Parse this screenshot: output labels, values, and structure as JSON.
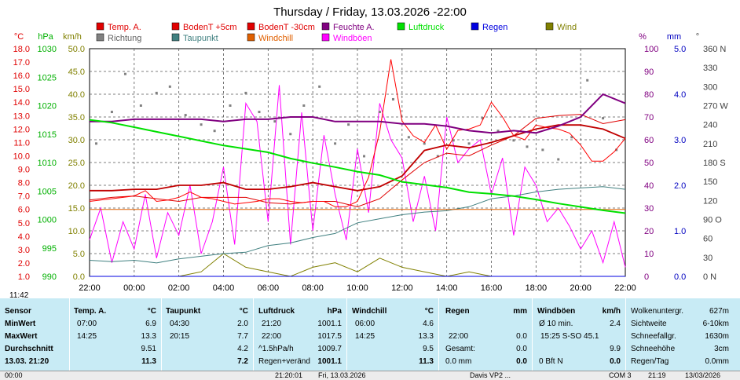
{
  "chart_data": {
    "type": "line",
    "title": "Thursday / Friday, 13.03.2026  -22:00",
    "x_ticks": [
      "22:00",
      "00:00",
      "02:00",
      "04:00",
      "06:00",
      "08:00",
      "10:00",
      "12:00",
      "14:00",
      "16:00",
      "18:00",
      "20:00",
      "22:00"
    ],
    "x_range_hours": [
      0,
      24
    ],
    "axes": {
      "temp": {
        "unit": "°C",
        "range": [
          1.0,
          18.0
        ],
        "ticks": [
          "18.0",
          "17.0",
          "16.0",
          "15.0",
          "14.0",
          "13.0",
          "12.0",
          "11.0",
          "10.0",
          "9.0",
          "8.0",
          "7.0",
          "6.0",
          "5.0",
          "4.0",
          "3.0",
          "2.0",
          "1.0"
        ],
        "color": "#e00000"
      },
      "pressure": {
        "unit": "hPa",
        "range": [
          990,
          1030
        ],
        "ticks": [
          "1030",
          "1025",
          "1020",
          "1015",
          "1010",
          "1005",
          "1000",
          "995",
          "990"
        ],
        "color": "#00b000"
      },
      "wind": {
        "unit": "km/h",
        "range": [
          0,
          50
        ],
        "ticks": [
          "50.0",
          "45.0",
          "40.0",
          "35.0",
          "30.0",
          "25.0",
          "20.0",
          "15.0",
          "10.0",
          "5.0",
          "0.0"
        ],
        "color": "#808000"
      },
      "humidity": {
        "unit": "%",
        "range": [
          0,
          100
        ],
        "ticks": [
          "100",
          "90",
          "80",
          "70",
          "60",
          "50",
          "40",
          "30",
          "20",
          "10",
          "0"
        ],
        "color": "#800080"
      },
      "rain": {
        "unit": "mm",
        "range": [
          0,
          5
        ],
        "ticks": [
          "5.0",
          "4.0",
          "3.0",
          "2.0",
          "1.0",
          "0.0"
        ],
        "color": "#0000c0"
      },
      "direction": {
        "unit": "°",
        "ticks": [
          "360 N",
          "330",
          "300",
          "270 W",
          "240",
          "210",
          "180 S",
          "150",
          "120",
          "90 O",
          "60",
          "30",
          "0 N"
        ],
        "color": "#404040"
      }
    },
    "legend": [
      {
        "name": "Temp. A.",
        "color": "#e00000"
      },
      {
        "name": "BodenT +5cm",
        "color": "#e00000"
      },
      {
        "name": "BodenT -30cm",
        "color": "#e00000"
      },
      {
        "name": "Feuchte A.",
        "color": "#800080"
      },
      {
        "name": "Luftdruck",
        "color": "#00e000"
      },
      {
        "name": "Regen",
        "color": "#0000e0"
      },
      {
        "name": "Wind",
        "color": "#808000"
      },
      {
        "name": "Richtung",
        "color": "#808080"
      },
      {
        "name": "Taupunkt",
        "color": "#408080"
      },
      {
        "name": "Windchill",
        "color": "#e06000"
      },
      {
        "name": "Windböen",
        "color": "#ff00ff"
      }
    ],
    "series": [
      {
        "name": "Temp. A.",
        "axis": "temp",
        "color": "#c00000",
        "x": [
          0,
          1,
          2,
          3,
          4,
          5,
          6,
          7,
          8,
          9,
          10,
          11,
          12,
          13,
          14,
          15,
          16,
          17,
          18,
          19,
          20,
          21,
          22,
          23,
          24
        ],
        "values": [
          7.4,
          7.4,
          7.5,
          7.5,
          7.8,
          7.8,
          8.0,
          7.5,
          7.5,
          7.7,
          8.0,
          7.7,
          7.4,
          7.7,
          8.5,
          10.4,
          10.8,
          10.6,
          11.0,
          11.5,
          12.0,
          12.3,
          12.3,
          12.0,
          11.3
        ]
      },
      {
        "name": "BodenT +5cm",
        "axis": "temp",
        "color": "#e00000",
        "x": [
          0,
          1,
          2,
          3,
          4,
          5,
          6,
          7,
          8,
          9,
          10,
          11,
          12,
          13,
          14,
          15,
          16,
          17,
          18,
          19,
          20,
          21,
          22,
          23,
          24
        ],
        "values": [
          6.7,
          6.9,
          7.0,
          6.8,
          6.6,
          6.9,
          6.9,
          6.9,
          6.5,
          6.4,
          6.6,
          6.6,
          6.2,
          6.8,
          8.2,
          9.5,
          10.2,
          10.0,
          10.8,
          11.5,
          12.8,
          13.0,
          13.1,
          12.4,
          12.7
        ]
      },
      {
        "name": "BodenT -30cm",
        "axis": "temp",
        "color": "#ff0000",
        "x": [
          0,
          0.5,
          1,
          1.5,
          2,
          2.5,
          3,
          3.5,
          4,
          4.5,
          5,
          5.5,
          6,
          6.5,
          7,
          7.5,
          8,
          8.5,
          9,
          9.5,
          10,
          10.5,
          11,
          11.5,
          12,
          12.5,
          13,
          13.5,
          14,
          14.5,
          15,
          15.5,
          16,
          16.5,
          17,
          17.5,
          18,
          18.5,
          19,
          19.5,
          20,
          20.5,
          21,
          21.5,
          22,
          22.5,
          23,
          23.5,
          24
        ],
        "values": [
          6.6,
          6.7,
          6.8,
          6.9,
          7.0,
          7.4,
          6.6,
          6.7,
          6.9,
          7.3,
          6.9,
          6.8,
          6.6,
          6.4,
          6.5,
          6.6,
          6.8,
          6.8,
          6.6,
          6.5,
          6.6,
          6.6,
          6.2,
          6.2,
          6.6,
          8.4,
          11.8,
          17.2,
          12.6,
          11.5,
          11.0,
          12.3,
          10.5,
          11.9,
          12.0,
          12.3,
          14.0,
          12.9,
          11.5,
          11.2,
          12.3,
          12.1,
          12.0,
          11.7,
          10.8,
          9.6,
          9.6,
          10.3,
          11.3
        ]
      },
      {
        "name": "Feuchte A.",
        "axis": "humidity",
        "color": "#800080",
        "x": [
          0,
          1,
          2,
          3,
          4,
          5,
          6,
          7,
          8,
          9,
          10,
          11,
          12,
          13,
          14,
          15,
          16,
          17,
          18,
          19,
          20,
          21,
          22,
          23,
          24
        ],
        "values": [
          68,
          68,
          69,
          69,
          69,
          69,
          68,
          69,
          69,
          70,
          70,
          68,
          68,
          68,
          67,
          67,
          66,
          64,
          63,
          64,
          63,
          66,
          70,
          80,
          76
        ]
      },
      {
        "name": "Luftdruck",
        "axis": "pressure",
        "color": "#00e000",
        "x": [
          0,
          1,
          2,
          3,
          4,
          5,
          6,
          7,
          8,
          9,
          10,
          11,
          12,
          13,
          14,
          15,
          16,
          17,
          18,
          19,
          20,
          21,
          22,
          23,
          24
        ],
        "values": [
          1017.5,
          1017.0,
          1016.2,
          1015.4,
          1014.6,
          1013.8,
          1013.0,
          1012.4,
          1011.8,
          1010.7,
          1009.9,
          1009.2,
          1008.4,
          1007.8,
          1006.6,
          1006.1,
          1005.6,
          1004.8,
          1004.5,
          1004.1,
          1003.5,
          1002.8,
          1002.2,
          1001.6,
          1001.1
        ]
      },
      {
        "name": "Taupunkt",
        "axis": "temp",
        "color": "#408080",
        "x": [
          0,
          1,
          2,
          3,
          4,
          5,
          6,
          7,
          8,
          9,
          10,
          11,
          12,
          13,
          14,
          15,
          16,
          17,
          18,
          19,
          20,
          21,
          22,
          23,
          24
        ],
        "values": [
          2.2,
          2.1,
          2.2,
          2.0,
          2.3,
          2.5,
          2.7,
          2.8,
          3.3,
          3.5,
          3.9,
          4.2,
          5.0,
          5.3,
          5.6,
          5.8,
          5.9,
          6.2,
          6.8,
          7.0,
          7.3,
          7.5,
          7.6,
          7.7,
          7.5
        ]
      },
      {
        "name": "Windchill",
        "axis": "temp",
        "color": "#e06000",
        "x": [
          0,
          24
        ],
        "values": [
          6.0,
          6.0
        ]
      },
      {
        "name": "Regen",
        "axis": "rain",
        "color": "#0000e0",
        "x": [
          0,
          24
        ],
        "values": [
          0.0,
          0.0
        ]
      },
      {
        "name": "Wind",
        "axis": "wind",
        "color": "#808000",
        "x": [
          0,
          1,
          2,
          3,
          4,
          5,
          6,
          7,
          8,
          9,
          10,
          11,
          12,
          13,
          14,
          15,
          16,
          17,
          18,
          19,
          20,
          21,
          22,
          23,
          24
        ],
        "values": [
          0,
          0,
          0,
          0,
          0,
          1,
          5,
          2,
          1,
          0,
          2,
          3,
          1,
          4,
          2,
          1,
          0,
          1,
          0,
          0,
          0,
          0,
          0,
          0,
          0
        ]
      },
      {
        "name": "Windböen",
        "axis": "wind",
        "color": "#ff00ff",
        "x": [
          0,
          0.5,
          1,
          1.5,
          2,
          2.5,
          3,
          3.5,
          4,
          4.5,
          5,
          5.5,
          6,
          6.5,
          7,
          7.5,
          8,
          8.5,
          9,
          9.5,
          10,
          10.5,
          11,
          11.5,
          12,
          12.5,
          13,
          13.5,
          14,
          14.5,
          15,
          15.5,
          16,
          16.5,
          17,
          17.5,
          18,
          18.5,
          19,
          19.5,
          20,
          20.5,
          21,
          21.5,
          22,
          22.5,
          23,
          23.5,
          24
        ],
        "values": [
          8,
          15,
          3,
          12,
          6,
          18,
          4,
          14,
          9,
          20,
          5,
          12,
          24,
          7,
          38,
          34,
          12,
          42,
          7,
          36,
          10,
          31,
          18,
          8,
          28,
          14,
          38,
          30,
          26,
          12,
          22,
          10,
          35,
          25,
          28,
          30,
          18,
          26,
          9,
          24,
          20,
          12,
          15,
          11,
          6,
          10,
          3,
          12,
          2
        ]
      },
      {
        "name": "Richtung",
        "axis": "direction",
        "color": "#808080",
        "type": "scatter",
        "x": [
          0.3,
          1,
          1.6,
          2.3,
          3,
          3.6,
          4.3,
          5,
          5.6,
          6.3,
          7,
          7.6,
          8.3,
          9,
          9.6,
          10.3,
          11,
          11.6,
          12.3,
          13,
          13.6,
          14.3,
          15,
          15.6,
          16.3,
          17,
          17.6,
          18.3,
          19,
          19.6,
          20.3,
          21,
          21.6,
          22.3,
          23,
          23.6
        ],
        "values": [
          210,
          260,
          320,
          270,
          290,
          300,
          255,
          240,
          230,
          270,
          290,
          260,
          245,
          225,
          270,
          300,
          210,
          240,
          190,
          260,
          280,
          220,
          210,
          190,
          215,
          210,
          250,
          230,
          215,
          205,
          200,
          185,
          220,
          310,
          250,
          200
        ]
      }
    ]
  },
  "stats": {
    "sensor": {
      "header": "Sensor",
      "rows": [
        "MinWert",
        "MaxWert",
        "Durchschnitt",
        "13.03. 21:20"
      ]
    },
    "temp": {
      "header": "Temp. A.",
      "unit": "°C",
      "rows": [
        [
          "07:00",
          "6.9"
        ],
        [
          "14:25",
          "13.3"
        ],
        [
          "",
          "9.51"
        ],
        [
          "",
          "11.3"
        ]
      ]
    },
    "taupunkt": {
      "header": "Taupunkt",
      "unit": "°C",
      "rows": [
        [
          "04:30",
          "2.0"
        ],
        [
          "20:15",
          "7.7"
        ],
        [
          "",
          "4.2"
        ],
        [
          "",
          "7.2"
        ]
      ]
    },
    "luftdruck": {
      "header": "Luftdruck",
      "unit": "hPa",
      "rows": [
        [
          "21:20",
          "1001.1"
        ],
        [
          "22:00",
          "1017.5"
        ],
        [
          "^1.5hPa/h",
          "1009.7"
        ],
        [
          "Regen+veränd",
          "1001.1"
        ]
      ]
    },
    "windchill": {
      "header": "Windchill",
      "unit": "°C",
      "rows": [
        [
          "06:00",
          "4.6"
        ],
        [
          "14:25",
          "13.3"
        ],
        [
          "",
          "9.5"
        ],
        [
          "",
          "11.3"
        ]
      ]
    },
    "regen": {
      "header": "Regen",
      "unit": "mm",
      "rows": [
        [
          "",
          ""
        ],
        [
          "22:00",
          "0.0"
        ],
        [
          "Gesamt:",
          "0.0"
        ],
        [
          "0.0 mm",
          "0.0"
        ]
      ]
    },
    "windboeen": {
      "header": "Windböen",
      "unit": "km/h",
      "rows": [
        [
          "Ø 10 min.",
          "2.4"
        ],
        [
          "15:25   S-SO 45.1",
          ""
        ],
        [
          "",
          "9.9"
        ],
        [
          "0 Bft N",
          "0.0"
        ]
      ]
    },
    "extra": {
      "rows": [
        [
          "Wolkenuntergr.",
          "627m"
        ],
        [
          "Sichtweite",
          "6-10km"
        ],
        [
          "Schneefallgr.",
          "1630m"
        ],
        [
          "Schneehöhe",
          "3cm"
        ],
        [
          "Regen/Tag",
          "0.0mm"
        ]
      ]
    }
  },
  "corner_time": "11:42",
  "status_bar": [
    "00:00",
    "21:20:01",
    "Fri, 13.03.2026",
    "Davis VP2 ... ",
    "COM 3",
    "21:19",
    "13/03/2026"
  ]
}
